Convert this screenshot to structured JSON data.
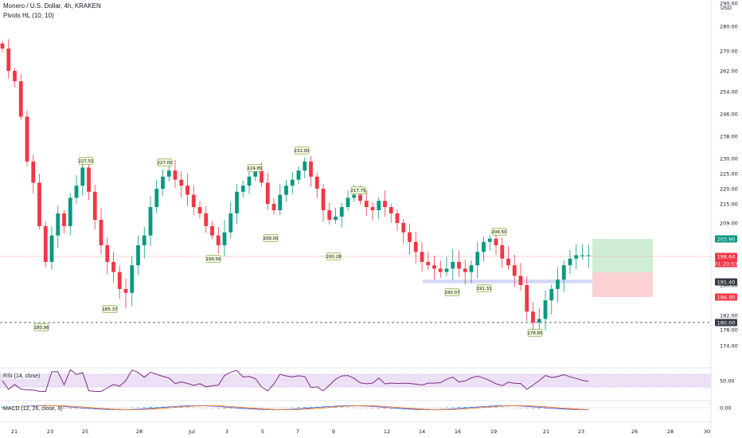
{
  "header": {
    "title": "Monero / U.S. Dollar, 4h, KRAKEN",
    "indicator": "Pivots HL (10, 10)",
    "currency": "USD"
  },
  "chart_data": {
    "type": "candlestick",
    "ylim": [
      168,
      290
    ],
    "y_ticks": [
      174,
      178,
      182,
      190,
      209,
      215,
      220,
      225,
      230,
      238,
      246,
      254,
      262,
      270,
      280,
      290
    ],
    "x_ticks": [
      "21",
      "23",
      "25",
      "28",
      "Jul",
      "3",
      "5",
      "7",
      "9",
      "12",
      "14",
      "16",
      "19",
      "21",
      "23",
      "26",
      "28",
      "30"
    ],
    "close_series": [
      [
        0,
        271
      ],
      [
        1,
        262
      ],
      [
        2,
        258
      ],
      [
        3,
        245
      ],
      [
        4,
        229
      ],
      [
        5,
        222
      ],
      [
        6,
        208
      ],
      [
        7,
        197
      ],
      [
        8,
        205
      ],
      [
        9,
        212
      ],
      [
        10,
        208
      ],
      [
        11,
        217
      ],
      [
        12,
        221
      ],
      [
        13,
        227
      ],
      [
        14,
        219
      ],
      [
        15,
        210
      ],
      [
        16,
        202
      ],
      [
        17,
        197
      ],
      [
        18,
        194
      ],
      [
        19,
        189
      ],
      [
        20,
        188
      ],
      [
        21,
        196
      ],
      [
        22,
        202
      ],
      [
        23,
        205
      ],
      [
        24,
        214
      ],
      [
        25,
        220
      ],
      [
        26,
        224
      ],
      [
        27,
        226
      ],
      [
        28,
        223
      ],
      [
        29,
        221
      ],
      [
        30,
        218
      ],
      [
        31,
        214
      ],
      [
        32,
        212
      ],
      [
        33,
        208
      ],
      [
        34,
        205
      ],
      [
        35,
        202
      ],
      [
        36,
        206
      ],
      [
        37,
        212
      ],
      [
        38,
        219
      ],
      [
        39,
        221
      ],
      [
        40,
        224
      ],
      [
        41,
        226
      ],
      [
        42,
        222
      ],
      [
        43,
        215
      ],
      [
        44,
        213
      ],
      [
        45,
        218
      ],
      [
        46,
        221
      ],
      [
        47,
        223
      ],
      [
        48,
        226
      ],
      [
        49,
        229
      ],
      [
        50,
        224
      ],
      [
        51,
        220
      ],
      [
        52,
        213
      ],
      [
        53,
        210
      ],
      [
        54,
        211
      ],
      [
        55,
        214
      ],
      [
        56,
        217
      ],
      [
        57,
        218
      ],
      [
        58,
        216
      ],
      [
        59,
        214
      ],
      [
        60,
        213
      ],
      [
        61,
        216
      ],
      [
        62,
        214
      ],
      [
        63,
        212
      ],
      [
        64,
        209
      ],
      [
        65,
        206
      ],
      [
        66,
        203
      ],
      [
        67,
        200
      ],
      [
        68,
        197
      ],
      [
        69,
        196
      ],
      [
        70,
        195
      ],
      [
        71,
        194
      ],
      [
        72,
        195
      ],
      [
        73,
        197
      ],
      [
        74,
        195
      ],
      [
        75,
        194
      ],
      [
        76,
        196
      ],
      [
        77,
        200
      ],
      [
        78,
        203
      ],
      [
        79,
        204
      ],
      [
        80,
        202
      ],
      [
        81,
        198
      ],
      [
        82,
        196
      ],
      [
        83,
        193
      ],
      [
        84,
        190
      ],
      [
        85,
        183
      ],
      [
        86,
        180
      ],
      [
        87,
        181
      ],
      [
        88,
        186
      ],
      [
        89,
        189
      ],
      [
        90,
        192
      ],
      [
        91,
        196
      ],
      [
        92,
        198
      ],
      [
        93,
        199
      ],
      [
        94,
        199
      ],
      [
        95,
        199
      ]
    ],
    "pivot_labels": [
      "180.98",
      "227.51",
      "185.37",
      "227.00",
      "199.56",
      "224.89",
      "209.00",
      "231.00",
      "200.28",
      "217.75",
      "190.07",
      "191.31",
      "204.50",
      "178.85"
    ],
    "price_labels": [
      {
        "label": "203.90",
        "color": "#089981"
      },
      {
        "label": "198.64",
        "color": "#f23645"
      },
      {
        "label": "01:20:53",
        "color": "#f23645"
      },
      {
        "label": "191.40",
        "color": "#363a45"
      },
      {
        "label": "186.90",
        "color": "#f23645"
      },
      {
        "label": "180.00",
        "color": "#363a45"
      }
    ],
    "position": {
      "entry": 193.9,
      "target": 203.9,
      "stop": 186.9
    },
    "support_zone": [
      190.8,
      192.0
    ],
    "current_price": 198.64,
    "level_line": 180.0,
    "rsi": {
      "label": "RSI (14, close)",
      "ticks": [
        "50.00"
      ],
      "upper": 70,
      "lower": 30
    },
    "macd": {
      "label": "MACD (12, 26, close, 9)",
      "ticks": [
        "0.00"
      ]
    },
    "colors": {
      "up": "#089981",
      "down": "#f23645",
      "rsi_line": "#7e2a8c",
      "rsi_band": "#ede1f5",
      "macd_line": "#2962ff",
      "signal_line": "#ff6d00",
      "long_profit": "#cfedd3",
      "long_loss": "#fbd1d4",
      "support": "#d5d9f9"
    }
  }
}
